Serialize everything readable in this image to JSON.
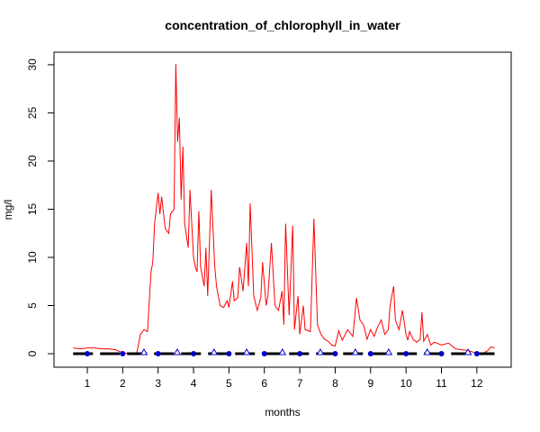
{
  "chart_data": {
    "type": "line",
    "title": "concentration_of_chlorophyll_in_water",
    "x_label": "months",
    "y_label": "mg/l",
    "xlim": [
      0.06,
      12.97
    ],
    "ylim": [
      -1.4,
      31.3
    ],
    "xticks": [
      1,
      2,
      3,
      4,
      5,
      6,
      7,
      8,
      9,
      10,
      11,
      12
    ],
    "yticks": [
      0,
      5,
      10,
      15,
      20,
      25,
      30
    ],
    "series": [
      {
        "color": "#ff0000",
        "marker": "none",
        "x": [
          0.6,
          0.8,
          1.0,
          1.2,
          1.4,
          1.6,
          1.8,
          2.0,
          2.2,
          2.4,
          2.5,
          2.6,
          2.7,
          2.8,
          2.85,
          2.9,
          3.0,
          3.05,
          3.1,
          3.2,
          3.3,
          3.35,
          3.45,
          3.5,
          3.55,
          3.6,
          3.65,
          3.7,
          3.75,
          3.85,
          3.9,
          4.0,
          4.05,
          4.1,
          4.15,
          4.2,
          4.3,
          4.35,
          4.4,
          4.5,
          4.6,
          4.65,
          4.75,
          4.85,
          4.95,
          5.0,
          5.1,
          5.15,
          5.25,
          5.3,
          5.4,
          5.5,
          5.55,
          5.6,
          5.7,
          5.8,
          5.9,
          5.95,
          6.05,
          6.1,
          6.2,
          6.3,
          6.4,
          6.5,
          6.55,
          6.6,
          6.7,
          6.8,
          6.85,
          6.95,
          7.0,
          7.1,
          7.15,
          7.3,
          7.4,
          7.5,
          7.6,
          7.7,
          7.8,
          7.9,
          8.0,
          8.1,
          8.2,
          8.35,
          8.5,
          8.6,
          8.7,
          8.8,
          8.9,
          9.0,
          9.1,
          9.2,
          9.3,
          9.4,
          9.5,
          9.55,
          9.65,
          9.7,
          9.8,
          9.9,
          10.0,
          10.05,
          10.1,
          10.2,
          10.3,
          10.4,
          10.45,
          10.5,
          10.6,
          10.7,
          10.8,
          11.0,
          11.2,
          11.4,
          11.6,
          11.8,
          12.0,
          12.2,
          12.3,
          12.4,
          12.5
        ],
        "values": [
          0.6,
          0.5,
          0.6,
          0.6,
          0.5,
          0.5,
          0.4,
          0.1,
          0.0,
          0.1,
          2.0,
          2.5,
          2.3,
          8.5,
          9.5,
          13.5,
          16.7,
          14.5,
          16.3,
          13,
          12.5,
          14.5,
          15,
          30.1,
          22,
          24.5,
          16,
          21.5,
          13.5,
          11,
          17,
          10,
          9,
          8.5,
          14.8,
          9,
          7,
          11,
          6,
          17,
          9,
          7,
          5,
          4.8,
          5.5,
          4.8,
          7.5,
          5.5,
          5.8,
          9,
          6.5,
          11.5,
          7,
          15.6,
          6,
          4.5,
          5.8,
          9.5,
          5,
          6,
          11.5,
          5,
          4.5,
          6.5,
          3,
          13.5,
          4,
          13.3,
          2.5,
          6,
          2,
          5,
          2.5,
          2.3,
          14,
          3,
          2,
          1.5,
          1.3,
          0.9,
          0.8,
          2.4,
          1.4,
          2.5,
          1.8,
          5.8,
          3.5,
          3,
          1.5,
          2.5,
          1.8,
          2.8,
          3.5,
          2,
          2.5,
          5,
          7,
          3.5,
          2.5,
          4.5,
          2.0,
          1.4,
          2.3,
          1.5,
          1.2,
          1.5,
          4.3,
          1.3,
          2.0,
          0.9,
          1.2,
          0.9,
          1.1,
          0.5,
          0.4,
          0.3,
          0.0,
          0.1,
          0.3,
          0.7,
          0.6
        ]
      },
      {
        "color": "#000000",
        "marker": "none",
        "dash": true,
        "x": [
          0.6,
          12.5
        ],
        "values": [
          0,
          0
        ]
      },
      {
        "color": "#0000cc",
        "marker": "circle",
        "x": [
          1,
          2,
          3,
          4,
          5,
          6,
          7,
          8,
          9,
          10,
          11,
          12
        ],
        "values": [
          0,
          0,
          0,
          0,
          0,
          0,
          0,
          0,
          0,
          0,
          0,
          0
        ]
      },
      {
        "color": "#0000cc",
        "marker": "triangle",
        "x": [
          2.6,
          3.54,
          4.58,
          5.5,
          6.51,
          7.58,
          8.57,
          9.51,
          10.6,
          11.75
        ],
        "values": [
          0.1,
          0.1,
          0.1,
          0.1,
          0.1,
          0.1,
          0.1,
          0.1,
          0.1,
          0.1
        ]
      }
    ]
  }
}
